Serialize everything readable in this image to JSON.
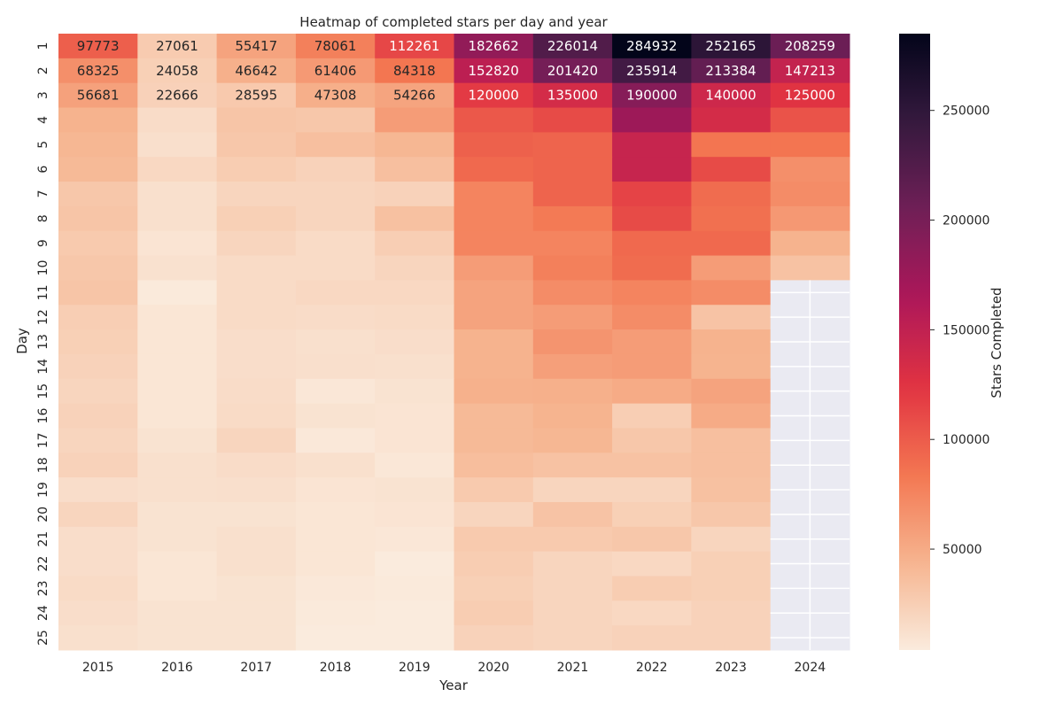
{
  "chart_data": {
    "type": "heatmap",
    "title": "Heatmap of completed stars per day and year",
    "xlabel": "Year",
    "ylabel": "Day",
    "x": [
      "2015",
      "2016",
      "2017",
      "2018",
      "2019",
      "2020",
      "2021",
      "2022",
      "2023",
      "2024"
    ],
    "y": [
      "1",
      "2",
      "3",
      "4",
      "5",
      "6",
      "7",
      "8",
      "9",
      "10",
      "11",
      "12",
      "13",
      "14",
      "15",
      "16",
      "17",
      "18",
      "19",
      "20",
      "21",
      "22",
      "23",
      "24",
      "25"
    ],
    "values": [
      [
        97773,
        27061,
        55417,
        78061,
        112261,
        182662,
        226014,
        284932,
        252165,
        208259
      ],
      [
        68325,
        24058,
        46642,
        61406,
        84318,
        152820,
        201420,
        235914,
        213384,
        147213
      ],
      [
        56681,
        22666,
        28595,
        47308,
        54266,
        120000,
        135000,
        190000,
        140000,
        125000
      ],
      [
        45000,
        15000,
        32000,
        30000,
        60000,
        102000,
        110000,
        175000,
        135000,
        105000
      ],
      [
        42000,
        13000,
        30000,
        36000,
        42000,
        97000,
        95000,
        145000,
        85000,
        85000
      ],
      [
        40000,
        18000,
        26000,
        22000,
        36000,
        92000,
        95000,
        145000,
        110000,
        68000
      ],
      [
        30000,
        12000,
        20000,
        20000,
        22000,
        75000,
        95000,
        115000,
        90000,
        70000
      ],
      [
        32000,
        12000,
        24000,
        20000,
        35000,
        75000,
        82000,
        110000,
        88000,
        62000
      ],
      [
        28000,
        9000,
        20000,
        16000,
        25000,
        75000,
        75000,
        92000,
        92000,
        45000
      ],
      [
        30000,
        11000,
        16000,
        16000,
        20000,
        60000,
        78000,
        90000,
        60000,
        34000
      ],
      [
        32000,
        5000,
        16000,
        18000,
        18000,
        55000,
        70000,
        75000,
        70000,
        null
      ],
      [
        25000,
        8000,
        16000,
        15000,
        16000,
        55000,
        60000,
        70000,
        33000,
        null
      ],
      [
        24000,
        8000,
        14000,
        12000,
        14000,
        45000,
        65000,
        60000,
        45000,
        null
      ],
      [
        22000,
        8000,
        14000,
        13000,
        12000,
        45000,
        58000,
        60000,
        44000,
        null
      ],
      [
        20000,
        8000,
        15000,
        7000,
        10000,
        46000,
        47000,
        50000,
        55000,
        null
      ],
      [
        22000,
        8000,
        16000,
        10000,
        9000,
        40000,
        44000,
        25000,
        50000,
        null
      ],
      [
        20000,
        10000,
        20000,
        6000,
        9000,
        40000,
        42000,
        30000,
        36000,
        null
      ],
      [
        22000,
        12000,
        15000,
        12000,
        7000,
        37000,
        34000,
        34000,
        36000,
        null
      ],
      [
        14000,
        12000,
        13000,
        9000,
        10000,
        28000,
        20000,
        20000,
        35000,
        null
      ],
      [
        20000,
        10000,
        10000,
        8000,
        9000,
        20000,
        33000,
        24000,
        30000,
        null
      ],
      [
        14000,
        10000,
        12000,
        8000,
        7000,
        28000,
        28000,
        30000,
        20000,
        null
      ],
      [
        14000,
        8000,
        12000,
        8000,
        4000,
        26000,
        20000,
        18000,
        24000,
        null
      ],
      [
        16000,
        8000,
        10000,
        6000,
        5000,
        24000,
        20000,
        26000,
        24000,
        null
      ],
      [
        14000,
        10000,
        10000,
        5000,
        4000,
        26000,
        20000,
        18000,
        22000,
        null
      ],
      [
        12000,
        10000,
        10000,
        4000,
        4000,
        22000,
        20000,
        22000,
        22000,
        null
      ]
    ],
    "annotated_rows": [
      "1",
      "2",
      "3"
    ],
    "colorbar": {
      "label": "Stars Completed",
      "range": [
        4000,
        285000
      ],
      "ticks": [
        50000,
        100000,
        150000,
        200000,
        250000
      ],
      "colormap": "rocket_r",
      "colormap_stops": [
        "#faebdd",
        "#f6b48f",
        "#f37651",
        "#e13342",
        "#ad1759",
        "#701f57",
        "#35193e",
        "#03051a"
      ]
    },
    "missing_color": "#eaeaf2",
    "grid": true
  }
}
